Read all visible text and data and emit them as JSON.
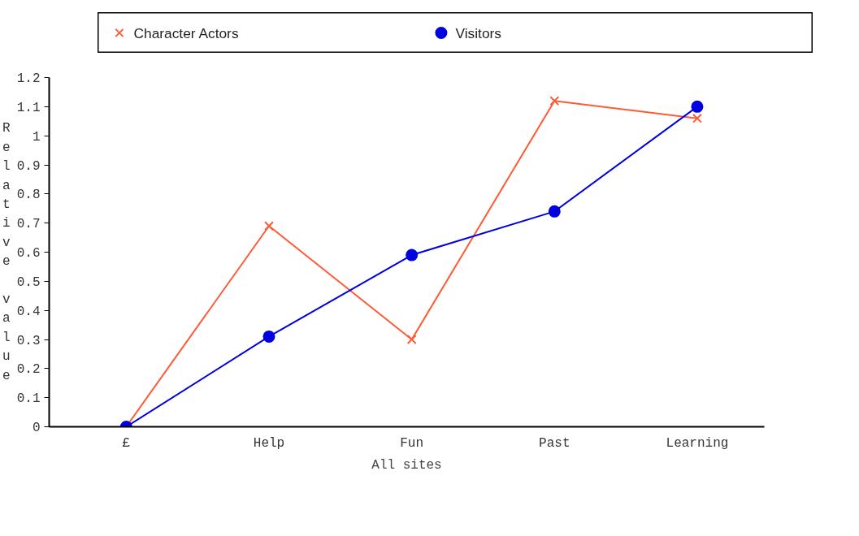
{
  "chart_data": {
    "type": "line",
    "xlabel": "All sites",
    "ylabel": "Relative value",
    "categories": [
      "£",
      "Help",
      "Fun",
      "Past",
      "Learning"
    ],
    "series": [
      {
        "name": "Character Actors",
        "color": "#ff5a36",
        "marker": "cross",
        "values": [
          0,
          0.69,
          0.3,
          1.12,
          1.06
        ]
      },
      {
        "name": "Visitors",
        "color": "#0000e0",
        "marker": "circle",
        "values": [
          0,
          0.31,
          0.59,
          0.74,
          1.1
        ]
      }
    ],
    "ylim": [
      0,
      1.2
    ],
    "yticks": [
      0,
      0.1,
      0.2,
      0.3,
      0.4,
      0.5,
      0.6,
      0.7,
      0.8,
      0.9,
      1,
      1.1,
      1.2
    ],
    "grid": false,
    "legend": "top"
  }
}
